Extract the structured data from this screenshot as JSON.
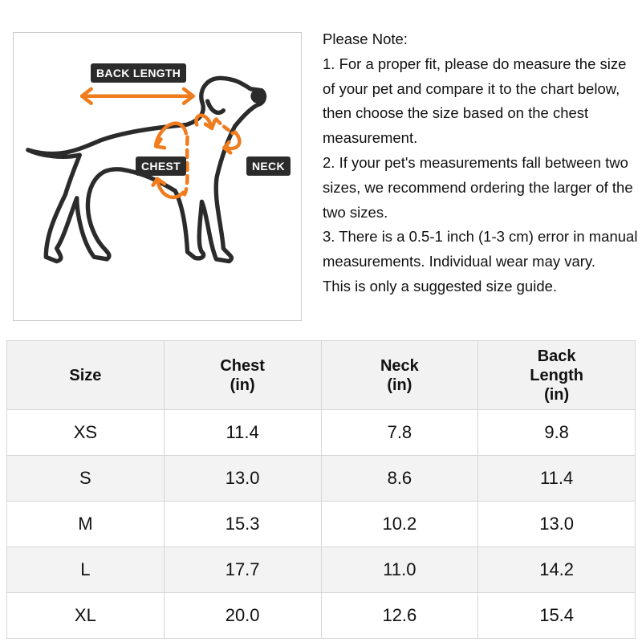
{
  "figure": {
    "labels": {
      "back_length": "BACK LENGTH",
      "chest": "CHEST",
      "neck": "NECK"
    },
    "accent_color": "#f07c1e",
    "outline_color": "#2b2b2b"
  },
  "note": {
    "title": "Please Note:",
    "lines": [
      "1. For a proper fit, please do measure the size of your pet and compare it to the chart below, then choose the size based on the chest measurement.",
      "2. If your pet's measurements fall between two sizes, we recommend ordering the larger of the two sizes.",
      "3. There is a 0.5-1 inch (1-3 cm) error in manual measurements. Individual wear may vary.",
      "This is only a suggested size guide."
    ]
  },
  "table": {
    "headers": [
      "Size",
      "Chest\n(in)",
      "Neck\n(in)",
      "Back\nLength\n(in)"
    ],
    "rows": [
      [
        "XS",
        "11.4",
        "7.8",
        "9.8"
      ],
      [
        "S",
        "13.0",
        "8.6",
        "11.4"
      ],
      [
        "M",
        "15.3",
        "10.2",
        "13.0"
      ],
      [
        "L",
        "17.7",
        "11.0",
        "14.2"
      ],
      [
        "XL",
        "20.0",
        "12.6",
        "15.4"
      ]
    ]
  }
}
